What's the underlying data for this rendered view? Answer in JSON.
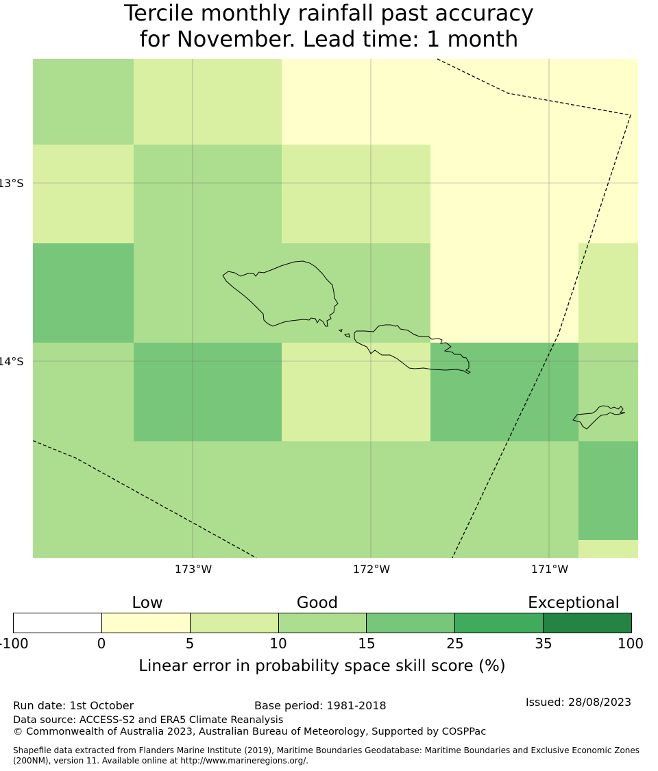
{
  "title": {
    "line1": "Tercile monthly rainfall past accuracy",
    "line2": "for November. Lead time: 1 month"
  },
  "map": {
    "lat_labels": [
      "13°S",
      "14°S"
    ],
    "lon_labels": [
      "173°W",
      "172°W",
      "171°W"
    ],
    "grid_colors": {
      "c0": "#ffffff",
      "c5": "#ffffcc",
      "c10": "#d9f0a3",
      "c15": "#addd8e",
      "c25": "#78c679",
      "c35": "#41ab5d",
      "c100": "#238443"
    },
    "boundary_color": "#000000",
    "icons": {
      "islands": "island-outline-icon",
      "eez": "maritime-boundary-icon"
    }
  },
  "colorbar": {
    "categories": [
      "Low",
      "Good",
      "Exceptional"
    ],
    "ticks": [
      "-100",
      "0",
      "5",
      "10",
      "15",
      "25",
      "35",
      "100"
    ],
    "colors": [
      "#ffffff",
      "#ffffcc",
      "#d9f0a3",
      "#addd8e",
      "#78c679",
      "#41ab5d",
      "#238443"
    ],
    "label": "Linear error in probability space skill score (%)"
  },
  "footer": {
    "run_date": "Run date: 1st October",
    "base_period": "Base period: 1981-2018",
    "issued": "Issued: 28/08/2023",
    "data_source": "Data source: ACCESS-S2 and ERA5 Climate Reanalysis",
    "copyright": "© Commonwealth of Australia 2023, Australian Bureau of Meteorology, Supported by COSPPac",
    "shapefile_line1": "Shapefile data extracted from Flanders Marine Institute (2019), Maritime Boundaries Geodatabase: Maritime Boundaries and Exclusive Economic Zones",
    "shapefile_line2": "(200NM), version 11. Available online at http://www.marineregions.org/."
  }
}
